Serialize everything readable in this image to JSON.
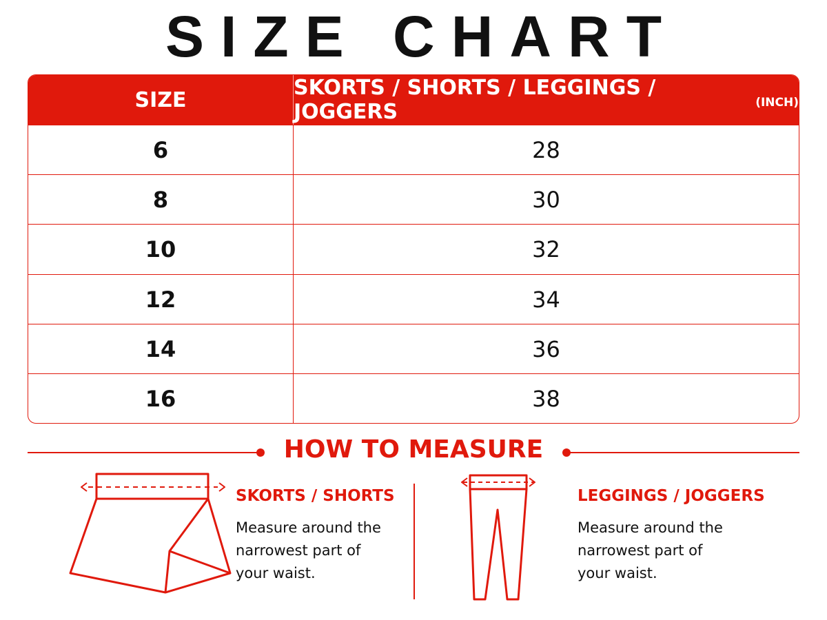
{
  "title": "SIZE CHART",
  "table": {
    "header": [
      "SIZE",
      "SKORTS / SHORTS / LEGGINGS / JOGGERS"
    ],
    "unit": "(INCH)",
    "rows": [
      [
        "6",
        "28"
      ],
      [
        "8",
        "30"
      ],
      [
        "10",
        "32"
      ],
      [
        "12",
        "34"
      ],
      [
        "14",
        "36"
      ],
      [
        "16",
        "38"
      ]
    ]
  },
  "how_to_measure": {
    "title": "HOW TO MEASURE",
    "items": [
      {
        "title": "SKORTS / SHORTS",
        "lines": [
          "Measure around the",
          "narrowest part of",
          "your waist."
        ]
      },
      {
        "title": "LEGGINGS / JOGGERS",
        "lines": [
          "Measure around the",
          "narrowest part of",
          "your waist."
        ]
      }
    ]
  }
}
